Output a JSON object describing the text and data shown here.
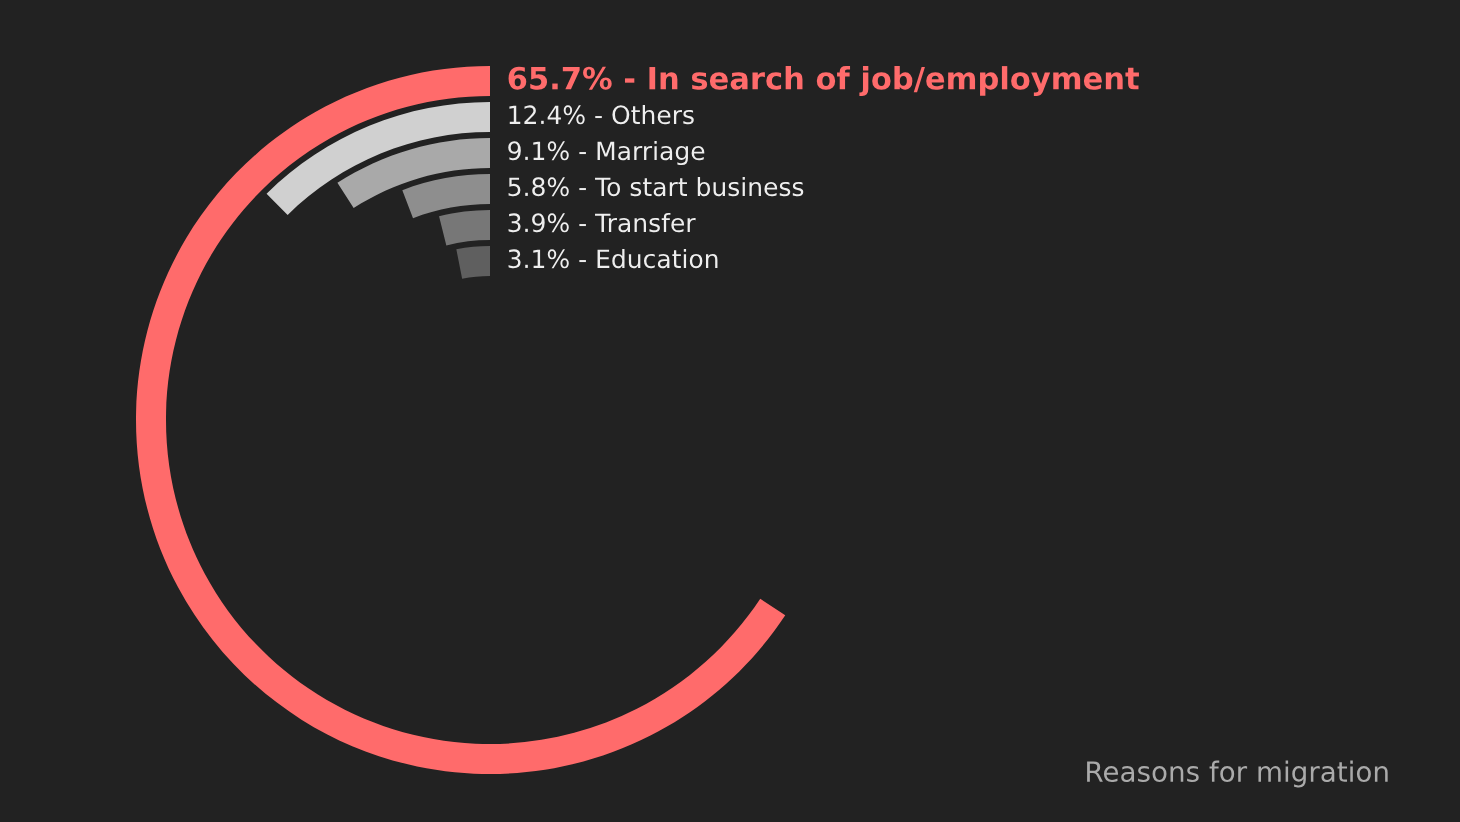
{
  "chart_data": {
    "type": "other",
    "title": "Reasons for migration",
    "values": [
      65.7,
      12.4,
      9.1,
      5.8,
      3.9,
      3.1
    ],
    "value_labels": [
      "65.7% - In search of job/employment",
      "12.4% - Others",
      "9.1% - Marriage",
      "5.8% - To start business",
      "3.9% - Transfer",
      "3.1% - Education"
    ],
    "colors": [
      "#ff6b6b",
      "#d0d0d0",
      "#a9a9a9",
      "#8e8e8e",
      "#777777",
      "#5f5f5f"
    ]
  }
}
